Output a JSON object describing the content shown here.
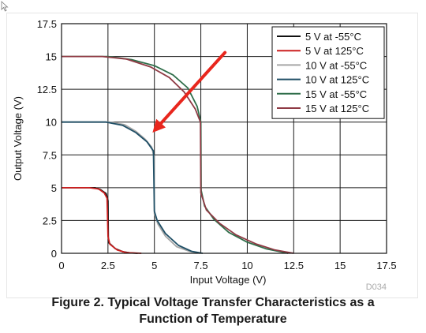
{
  "caption": {
    "line1": "Figure 2. Typical Voltage Transfer Characteristics as a",
    "line2": "Function of Temperature"
  },
  "chart_data": {
    "type": "line",
    "xlabel": "Input Voltage (V)",
    "ylabel": "Output Voltage (V)",
    "xlim": [
      0,
      17.5
    ],
    "ylim": [
      0,
      17.5
    ],
    "xticks": [
      "0",
      "2.5",
      "5",
      "7.5",
      "10",
      "12.5",
      "15",
      "17.5"
    ],
    "yticks": [
      "0",
      "2.5",
      "5",
      "7.5",
      "10",
      "12.5",
      "15",
      "17.5"
    ],
    "grid": true,
    "legend_position": "top-right",
    "figure_id": "D034",
    "series": [
      {
        "name": "5 V at -55°C",
        "color": "#111111",
        "points": [
          [
            0,
            5
          ],
          [
            1.8,
            5
          ],
          [
            2.1,
            4.85
          ],
          [
            2.4,
            4.55
          ],
          [
            2.5,
            4.0
          ],
          [
            2.52,
            1.2
          ],
          [
            2.55,
            0.8
          ],
          [
            2.9,
            0.35
          ],
          [
            3.3,
            0.12
          ],
          [
            3.7,
            0.03
          ],
          [
            4.1,
            0
          ]
        ]
      },
      {
        "name": "5 V at 125°C",
        "color": "#cc1f1f",
        "points": [
          [
            0,
            5
          ],
          [
            1.5,
            5
          ],
          [
            2.0,
            4.9
          ],
          [
            2.3,
            4.6
          ],
          [
            2.45,
            4.2
          ],
          [
            2.5,
            1.3
          ],
          [
            2.6,
            0.7
          ],
          [
            3.0,
            0.25
          ],
          [
            3.5,
            0.05
          ],
          [
            4.3,
            0
          ]
        ]
      },
      {
        "name": "10 V at -55°C",
        "color": "#a6a6a6",
        "points": [
          [
            0,
            10
          ],
          [
            2.6,
            10
          ],
          [
            3.4,
            9.8
          ],
          [
            4.0,
            9.3
          ],
          [
            4.5,
            8.7
          ],
          [
            4.85,
            8.1
          ],
          [
            4.98,
            7.4
          ],
          [
            5.0,
            3.0
          ],
          [
            5.2,
            2.2
          ],
          [
            5.6,
            1.3
          ],
          [
            6.2,
            0.5
          ],
          [
            6.9,
            0.15
          ],
          [
            7.5,
            0
          ]
        ]
      },
      {
        "name": "10 V at 125°C",
        "color": "#1f4f66",
        "points": [
          [
            0,
            10
          ],
          [
            2.4,
            10
          ],
          [
            3.3,
            9.75
          ],
          [
            4.0,
            9.2
          ],
          [
            4.6,
            8.5
          ],
          [
            4.95,
            7.8
          ],
          [
            5.0,
            3.2
          ],
          [
            5.15,
            2.5
          ],
          [
            5.6,
            1.5
          ],
          [
            6.3,
            0.6
          ],
          [
            7.0,
            0.15
          ],
          [
            7.6,
            0
          ]
        ]
      },
      {
        "name": "15 V at -55°C",
        "color": "#2f6e4a",
        "points": [
          [
            0,
            15
          ],
          [
            2.5,
            15
          ],
          [
            3.8,
            14.75
          ],
          [
            5.0,
            14.3
          ],
          [
            6.0,
            13.6
          ],
          [
            6.8,
            12.6
          ],
          [
            7.3,
            11.2
          ],
          [
            7.5,
            10.0
          ],
          [
            7.52,
            4.8
          ],
          [
            7.7,
            3.6
          ],
          [
            8.2,
            2.6
          ],
          [
            9.0,
            1.6
          ],
          [
            10.0,
            0.85
          ],
          [
            11.0,
            0.35
          ],
          [
            12.2,
            0
          ]
        ]
      },
      {
        "name": "15 V at 125°C",
        "color": "#8f3a44",
        "points": [
          [
            0,
            15
          ],
          [
            2.2,
            15
          ],
          [
            3.5,
            14.8
          ],
          [
            4.8,
            14.2
          ],
          [
            5.8,
            13.4
          ],
          [
            6.6,
            12.3
          ],
          [
            7.2,
            11.0
          ],
          [
            7.48,
            10.0
          ],
          [
            7.5,
            4.6
          ],
          [
            7.8,
            3.3
          ],
          [
            8.5,
            2.3
          ],
          [
            9.4,
            1.4
          ],
          [
            10.5,
            0.7
          ],
          [
            11.5,
            0.25
          ],
          [
            12.5,
            0
          ]
        ]
      }
    ],
    "annotation_arrow": {
      "from": [
        8.8,
        15.3
      ],
      "to": [
        4.9,
        9.2
      ],
      "color": "#e8261d"
    }
  }
}
